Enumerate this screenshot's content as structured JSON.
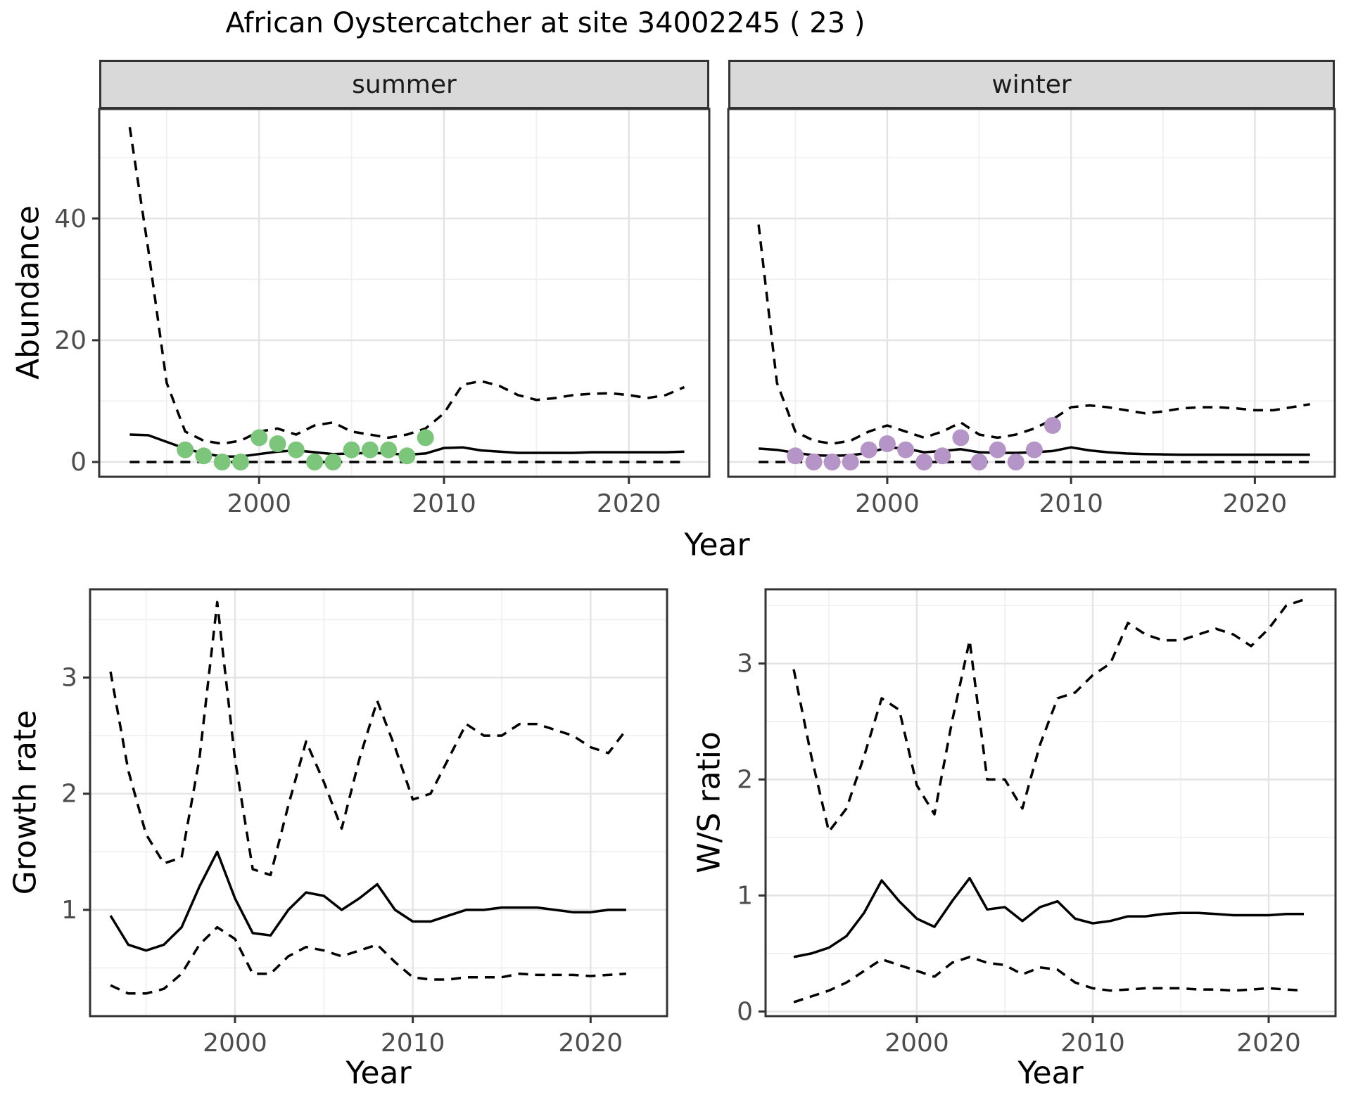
{
  "title": "African Oystercatcher at site 34002245 ( 23 )",
  "colors": {
    "line": "#000000",
    "point_summer": "#7cc67c",
    "point_winter": "#b594c8",
    "strip_bg": "#d9d9d9",
    "panel_border": "#333333",
    "grid_major": "#e4e4e4",
    "grid_minor": "#f0f0f0",
    "tick_text": "#4d4d4d"
  },
  "top_row": {
    "y_label": "Abundance",
    "x_label": "Year"
  },
  "chart_data": [
    {
      "id": "abundance-summer",
      "type": "line",
      "facet": "summer",
      "xlabel": "Year",
      "ylabel": "Abundance",
      "xlim": [
        1991.4,
        2024.4
      ],
      "ylim": [
        -2.4,
        58
      ],
      "x_ticks": [
        2000,
        2010,
        2020
      ],
      "x_tick_labels": [
        "2000",
        "2010",
        "2020"
      ],
      "y_ticks": [
        0,
        20,
        40
      ],
      "y_tick_labels": [
        "0",
        "20",
        "40"
      ],
      "x": [
        1993,
        1994,
        1995,
        1996,
        1997,
        1998,
        1999,
        2000,
        2001,
        2002,
        2003,
        2004,
        2005,
        2006,
        2007,
        2008,
        2009,
        2010,
        2011,
        2012,
        2013,
        2014,
        2015,
        2016,
        2017,
        2018,
        2019,
        2020,
        2021,
        2022,
        2023
      ],
      "series": [
        {
          "name": "upper-ci",
          "style": "dashed",
          "values": [
            55,
            35,
            13,
            5,
            3.5,
            3,
            3.5,
            5,
            5.5,
            4.5,
            6,
            6.5,
            5,
            4.5,
            4,
            4.5,
            5.5,
            8,
            12.7,
            13.3,
            12.5,
            11,
            10.2,
            10.5,
            11,
            11.2,
            11.3,
            11,
            10.5,
            11,
            12.3
          ]
        },
        {
          "name": "median",
          "style": "solid",
          "values": [
            4.5,
            4.4,
            3.3,
            2.2,
            1.4,
            0.9,
            0.9,
            1.3,
            1.7,
            1.9,
            1.6,
            1.3,
            1.4,
            1.5,
            1.4,
            1.2,
            1.4,
            2.3,
            2.4,
            1.9,
            1.7,
            1.5,
            1.5,
            1.5,
            1.5,
            1.6,
            1.6,
            1.6,
            1.6,
            1.6,
            1.7
          ]
        },
        {
          "name": "lower-ci",
          "style": "dashed",
          "values": [
            0,
            0,
            0,
            0,
            0,
            0,
            0,
            0,
            0,
            0,
            0,
            0,
            0,
            0,
            0,
            0,
            0,
            0,
            0,
            0,
            0,
            0,
            0,
            0,
            0,
            0,
            0,
            0,
            0,
            0,
            0
          ]
        }
      ],
      "points": {
        "name": "observed-count-summer",
        "color": "#7cc67c",
        "x": [
          1996,
          1997,
          1998,
          1999,
          2000,
          2001,
          2002,
          2003,
          2004,
          2005,
          2006,
          2007,
          2008,
          2009
        ],
        "y": [
          2,
          1,
          0,
          0,
          4,
          3,
          2,
          0,
          0,
          2,
          2,
          2,
          1,
          4
        ]
      }
    },
    {
      "id": "abundance-winter",
      "type": "line",
      "facet": "winter",
      "xlabel": "Year",
      "ylabel": "Abundance",
      "xlim": [
        1991.4,
        2024.4
      ],
      "ylim": [
        -2.4,
        58
      ],
      "x_ticks": [
        2000,
        2010,
        2020
      ],
      "x_tick_labels": [
        "2000",
        "2010",
        "2020"
      ],
      "y_ticks": [
        0,
        20,
        40
      ],
      "y_tick_labels": [
        "0",
        "20",
        "40"
      ],
      "x": [
        1993,
        1994,
        1995,
        1996,
        1997,
        1998,
        1999,
        2000,
        2001,
        2002,
        2003,
        2004,
        2005,
        2006,
        2007,
        2008,
        2009,
        2010,
        2011,
        2012,
        2013,
        2014,
        2015,
        2016,
        2017,
        2018,
        2019,
        2020,
        2021,
        2022,
        2023
      ],
      "series": [
        {
          "name": "upper-ci",
          "style": "dashed",
          "values": [
            39,
            13,
            5,
            3.5,
            3,
            3.5,
            5,
            6,
            5,
            4,
            5,
            6.5,
            4.5,
            4,
            4.5,
            5.5,
            7,
            9,
            9.3,
            9,
            8.5,
            8,
            8.3,
            8.8,
            9,
            9,
            8.8,
            8.5,
            8.5,
            9,
            9.5
          ]
        },
        {
          "name": "median",
          "style": "solid",
          "values": [
            2.2,
            2.0,
            1.5,
            1.1,
            1.0,
            1.1,
            1.5,
            2.4,
            2.2,
            1.6,
            1.8,
            2.1,
            1.6,
            1.5,
            1.5,
            1.6,
            1.8,
            2.4,
            1.9,
            1.6,
            1.4,
            1.3,
            1.25,
            1.2,
            1.2,
            1.2,
            1.2,
            1.2,
            1.2,
            1.2,
            1.2
          ]
        },
        {
          "name": "lower-ci",
          "style": "dashed",
          "values": [
            0,
            0,
            0,
            0,
            0,
            0,
            0,
            0,
            0,
            0,
            0,
            0,
            0,
            0,
            0,
            0,
            0,
            0,
            0,
            0,
            0,
            0,
            0,
            0,
            0,
            0,
            0,
            0,
            0,
            0,
            0
          ]
        }
      ],
      "points": {
        "name": "observed-count-winter",
        "color": "#b594c8",
        "x": [
          1995,
          1996,
          1997,
          1998,
          1999,
          2000,
          2001,
          2002,
          2003,
          2004,
          2005,
          2006,
          2007,
          2008,
          2009
        ],
        "y": [
          1,
          0,
          0,
          0,
          2,
          3,
          2,
          0,
          1,
          4,
          0,
          2,
          0,
          2,
          6
        ]
      }
    },
    {
      "id": "growth-rate",
      "type": "line",
      "xlabel": "Year",
      "ylabel": "Growth rate",
      "xlim": [
        1991.9,
        2024.3
      ],
      "ylim": [
        0.1,
        3.76
      ],
      "x_ticks": [
        2000,
        2010,
        2020
      ],
      "x_tick_labels": [
        "2000",
        "2010",
        "2020"
      ],
      "y_ticks": [
        1,
        2,
        3
      ],
      "y_tick_labels": [
        "1",
        "2",
        "3"
      ],
      "x": [
        1993,
        1994,
        1995,
        1996,
        1997,
        1998,
        1999,
        2000,
        2001,
        2002,
        2003,
        2004,
        2005,
        2006,
        2007,
        2008,
        2009,
        2010,
        2011,
        2012,
        2013,
        2014,
        2015,
        2016,
        2017,
        2018,
        2019,
        2020,
        2021,
        2022
      ],
      "series": [
        {
          "name": "upper-ci",
          "style": "dashed",
          "values": [
            3.05,
            2.2,
            1.65,
            1.4,
            1.45,
            2.3,
            3.65,
            2.3,
            1.35,
            1.3,
            1.9,
            2.45,
            2.1,
            1.7,
            2.3,
            2.8,
            2.4,
            1.95,
            2.0,
            2.3,
            2.6,
            2.5,
            2.5,
            2.6,
            2.6,
            2.55,
            2.5,
            2.4,
            2.35,
            2.55
          ]
        },
        {
          "name": "median",
          "style": "solid",
          "values": [
            0.95,
            0.7,
            0.65,
            0.7,
            0.85,
            1.2,
            1.5,
            1.1,
            0.8,
            0.78,
            1.0,
            1.15,
            1.12,
            1.0,
            1.1,
            1.22,
            1.0,
            0.9,
            0.9,
            0.95,
            1.0,
            1.0,
            1.02,
            1.02,
            1.02,
            1.0,
            0.98,
            0.98,
            1.0,
            1.0
          ]
        },
        {
          "name": "lower-ci",
          "style": "dashed",
          "values": [
            0.35,
            0.28,
            0.28,
            0.32,
            0.45,
            0.7,
            0.85,
            0.75,
            0.45,
            0.45,
            0.6,
            0.68,
            0.65,
            0.6,
            0.65,
            0.7,
            0.55,
            0.42,
            0.4,
            0.4,
            0.42,
            0.42,
            0.42,
            0.45,
            0.44,
            0.44,
            0.44,
            0.43,
            0.44,
            0.45
          ]
        }
      ]
    },
    {
      "id": "ws-ratio",
      "type": "line",
      "xlabel": "Year",
      "ylabel": "W/S ratio",
      "xlim": [
        1991.4,
        2023.8
      ],
      "ylim": [
        -0.04,
        3.64
      ],
      "x_ticks": [
        2000,
        2010,
        2020
      ],
      "x_tick_labels": [
        "2000",
        "2010",
        "2020"
      ],
      "y_ticks": [
        0,
        1,
        2,
        3
      ],
      "y_tick_labels": [
        "0",
        "1",
        "2",
        "3"
      ],
      "x": [
        1993,
        1994,
        1995,
        1996,
        1997,
        1998,
        1999,
        2000,
        2001,
        2002,
        2003,
        2004,
        2005,
        2006,
        2007,
        2008,
        2009,
        2010,
        2011,
        2012,
        2013,
        2014,
        2015,
        2016,
        2017,
        2018,
        2019,
        2020,
        2021,
        2022
      ],
      "series": [
        {
          "name": "upper-ci",
          "style": "dashed",
          "values": [
            2.95,
            2.2,
            1.55,
            1.75,
            2.2,
            2.7,
            2.6,
            1.95,
            1.7,
            2.5,
            3.2,
            2.0,
            2.0,
            1.75,
            2.3,
            2.7,
            2.75,
            2.9,
            3.0,
            3.35,
            3.25,
            3.2,
            3.2,
            3.25,
            3.3,
            3.25,
            3.15,
            3.3,
            3.5,
            3.55
          ]
        },
        {
          "name": "median",
          "style": "solid",
          "values": [
            0.47,
            0.5,
            0.55,
            0.65,
            0.85,
            1.13,
            0.95,
            0.8,
            0.73,
            0.95,
            1.15,
            0.88,
            0.9,
            0.78,
            0.9,
            0.95,
            0.8,
            0.76,
            0.78,
            0.82,
            0.82,
            0.84,
            0.85,
            0.85,
            0.84,
            0.83,
            0.83,
            0.83,
            0.84,
            0.84
          ]
        },
        {
          "name": "lower-ci",
          "style": "dashed",
          "values": [
            0.08,
            0.13,
            0.18,
            0.25,
            0.35,
            0.45,
            0.4,
            0.35,
            0.3,
            0.42,
            0.47,
            0.42,
            0.4,
            0.32,
            0.38,
            0.36,
            0.25,
            0.2,
            0.18,
            0.19,
            0.2,
            0.2,
            0.2,
            0.19,
            0.19,
            0.18,
            0.19,
            0.2,
            0.19,
            0.18
          ]
        }
      ]
    }
  ]
}
